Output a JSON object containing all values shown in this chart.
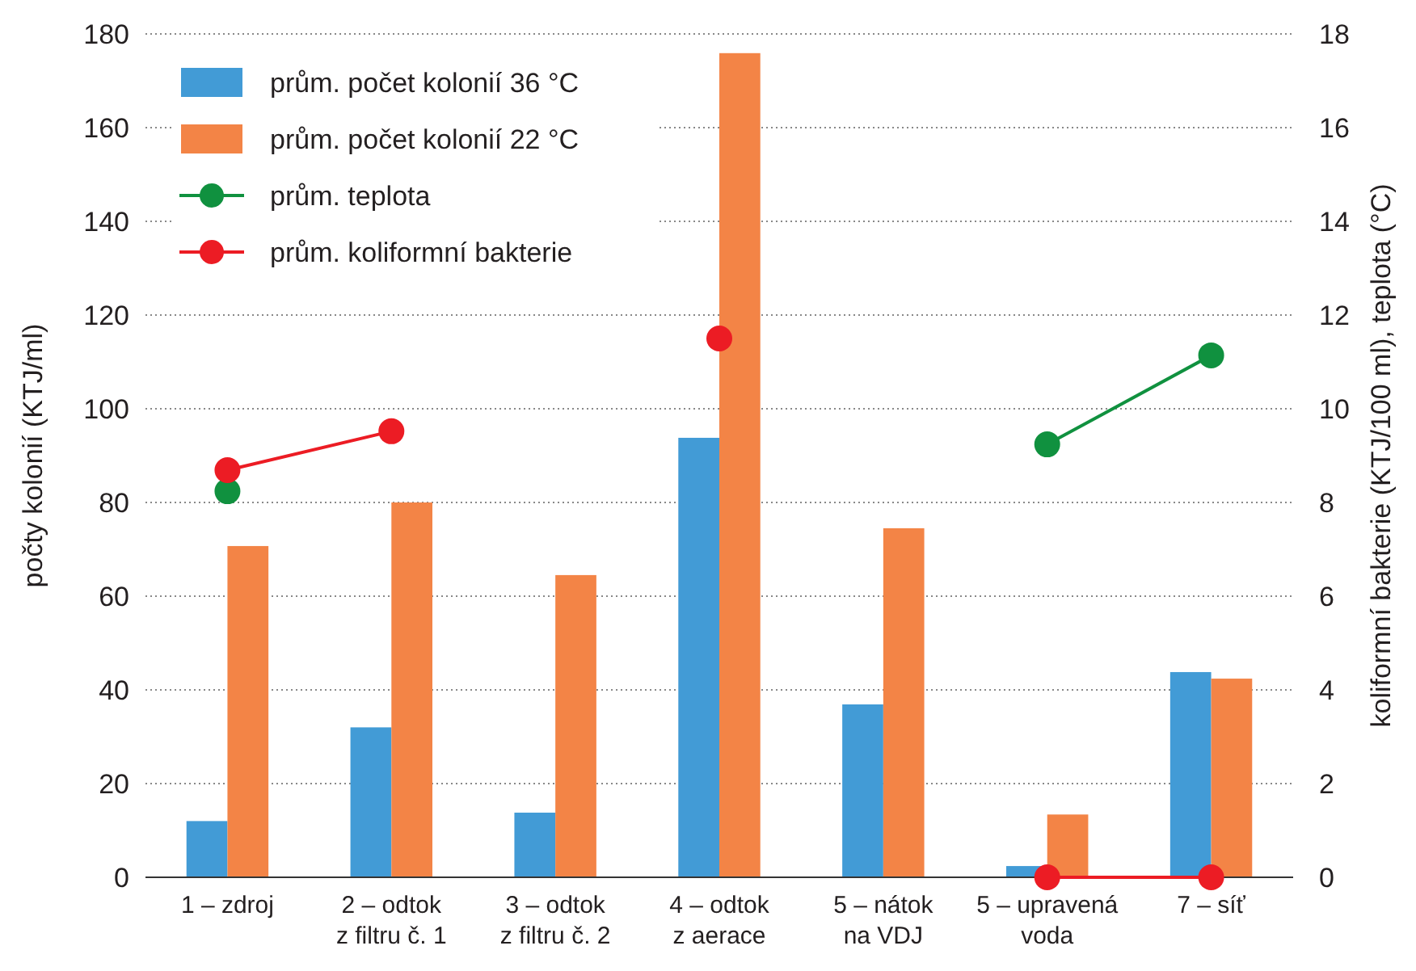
{
  "chart_data": {
    "type": "bar",
    "categories": [
      "1 – zdroj",
      "2 – odtok\nz filtru č. 1",
      "3 – odtok\nz filtru č. 2",
      "4 – odtok\nz aerace",
      "5 – nátok\nna VDJ",
      "5 – upravená\nvoda",
      "7 – síť"
    ],
    "series": [
      {
        "name": "prům. počet kolonií 36 °C",
        "color": "#429bd6",
        "values": [
          12,
          32,
          13.8,
          93.8,
          36.9,
          2.4,
          43.8
        ]
      },
      {
        "name": "prům. počet kolonií 22 °C",
        "color": "#f38446",
        "values": [
          70.7,
          80,
          64.5,
          175.9,
          74.5,
          13.4,
          42.4
        ]
      },
      {
        "name": "prům. teplota",
        "type": "line",
        "axis": "y2",
        "color": "#10913f",
        "values": [
          8.24,
          null,
          null,
          null,
          null,
          9.24,
          11.14
        ]
      },
      {
        "name": "prům. koliformní bakterie",
        "type": "line",
        "axis": "y2",
        "color": "#ec1c24",
        "values": [
          8.69,
          9.52,
          null,
          11.5,
          null,
          0,
          0
        ]
      }
    ],
    "ylabel": "počty kolonií (KTJ/ml)",
    "y2label": "koliformní bakterie (KTJ/100 ml), teplota (°C)",
    "ylim": [
      0,
      180
    ],
    "yticks": [
      0,
      20,
      40,
      60,
      80,
      100,
      120,
      140,
      160,
      180
    ],
    "y2lim": [
      0,
      18
    ],
    "y2ticks": [
      0,
      2,
      4,
      6,
      8,
      10,
      12,
      14,
      16,
      18
    ],
    "grid": "y",
    "legend": "top left",
    "marker": "circle",
    "line_style": "solid"
  }
}
